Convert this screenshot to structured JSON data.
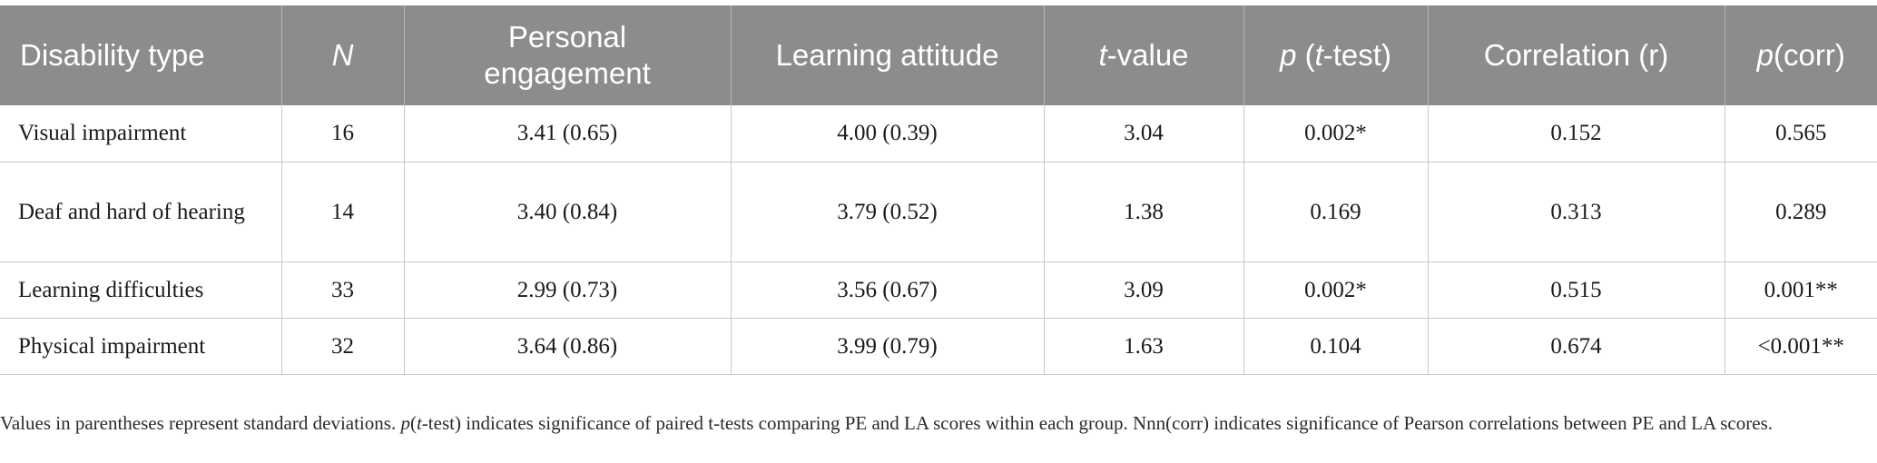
{
  "table": {
    "columns": [
      {
        "text": "Disability type"
      },
      {
        "italic": "N"
      },
      {
        "text": "Personal engagement"
      },
      {
        "text": "Learning attitude"
      },
      {
        "italic": "t",
        "text": "-value"
      },
      {
        "italic": "p",
        "text": " (",
        "italic2": "t",
        "text2": "-test)"
      },
      {
        "text": "Correlation (r)"
      },
      {
        "italic": "p",
        "text": "(corr)"
      }
    ],
    "rows": [
      {
        "type": "Visual impairment",
        "n": "16",
        "pe": "3.41 (0.65)",
        "la": "4.00 (0.39)",
        "t": "3.04",
        "p_t": "0.002*",
        "r": "0.152",
        "p_corr": "0.565"
      },
      {
        "type": "Deaf and hard of hearing",
        "n": "14",
        "pe": "3.40 (0.84)",
        "la": "3.79 (0.52)",
        "t": "1.38",
        "p_t": "0.169",
        "r": "0.313",
        "p_corr": "0.289"
      },
      {
        "type": "Learning difficulties",
        "n": "33",
        "pe": "2.99 (0.73)",
        "la": "3.56 (0.67)",
        "t": "3.09",
        "p_t": "0.002*",
        "r": "0.515",
        "p_corr": "0.001**"
      },
      {
        "type": "Physical impairment",
        "n": "32",
        "pe": "3.64 (0.86)",
        "la": "3.99 (0.79)",
        "t": "1.63",
        "p_t": "0.104",
        "r": "0.674",
        "p_corr": "<0.001**"
      }
    ]
  },
  "note": {
    "part1": "Values in parentheses represent standard deviations. ",
    "p_italic": "p",
    "part2": "(",
    "t_italic": "t",
    "part3": "-test) indicates significance of paired t-tests comparing PE and LA scores within each group. Nnn(corr) indicates significance of Pearson correlations between PE and LA scores."
  }
}
